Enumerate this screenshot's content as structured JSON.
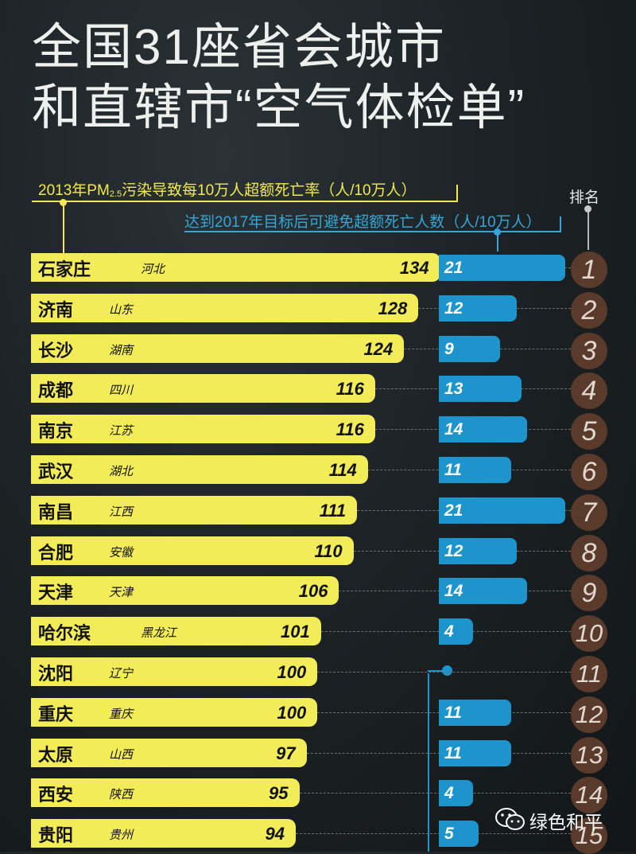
{
  "title": {
    "line1": "全国31座省会城市",
    "line2": "和直辖市“空气体检单”"
  },
  "legend": {
    "yellow_prefix": "2013年PM",
    "yellow_sub": "2.5",
    "yellow_suffix": "污染导致每10万人超额死亡率（人/10万人）",
    "blue": "达到2017年目标后可避免超额死亡人数（人/10万人）",
    "rank_header": "排名"
  },
  "watermark": "绿色和平",
  "colors": {
    "yellow": "#f2ec58",
    "blue": "#1e94cc",
    "rank_circle": "#5a3a2a"
  },
  "chart_data": {
    "type": "bar",
    "title": "",
    "series": [
      {
        "name": "2013年PM2.5污染导致每10万人超额死亡率（人/10万人）",
        "color": "#f2ec58"
      },
      {
        "name": "达到2017年目标后可避免超额死亡人数（人/10万人）",
        "color": "#1e94cc"
      }
    ],
    "rows": [
      {
        "city": "石家庄",
        "province": "河北",
        "death_rate": 134,
        "avoidable": "21",
        "rank": "1"
      },
      {
        "city": "济南",
        "province": "山东",
        "death_rate": 128,
        "avoidable": "12",
        "rank": "2"
      },
      {
        "city": "长沙",
        "province": "湖南",
        "death_rate": 124,
        "avoidable": "9",
        "rank": "3"
      },
      {
        "city": "成都",
        "province": "四川",
        "death_rate": 116,
        "avoidable": "13",
        "rank": "4"
      },
      {
        "city": "南京",
        "province": "江苏",
        "death_rate": 116,
        "avoidable": "14",
        "rank": "5"
      },
      {
        "city": "武汉",
        "province": "湖北",
        "death_rate": 114,
        "avoidable": "11",
        "rank": "6"
      },
      {
        "city": "南昌",
        "province": "江西",
        "death_rate": 111,
        "avoidable": "21",
        "rank": "7"
      },
      {
        "city": "合肥",
        "province": "安徽",
        "death_rate": 110,
        "avoidable": "12",
        "rank": "8"
      },
      {
        "city": "天津",
        "province": "天津",
        "death_rate": 106,
        "avoidable": "14",
        "rank": "9"
      },
      {
        "city": "哈尔滨",
        "province": "黑龙江",
        "death_rate": 101,
        "avoidable": "4",
        "rank": "10"
      },
      {
        "city": "沈阳",
        "province": "辽宁",
        "death_rate": 100,
        "avoidable": null,
        "rank": "11"
      },
      {
        "city": "重庆",
        "province": "重庆",
        "death_rate": 100,
        "avoidable": "11",
        "rank": "12"
      },
      {
        "city": "太原",
        "province": "山西",
        "death_rate": 97,
        "avoidable": "11",
        "rank": "13"
      },
      {
        "city": "西安",
        "province": "陕西",
        "death_rate": 95,
        "avoidable": "4",
        "rank": "14"
      },
      {
        "city": "贵阳",
        "province": "贵州",
        "death_rate": 94,
        "avoidable": "5",
        "rank": "15"
      }
    ]
  }
}
